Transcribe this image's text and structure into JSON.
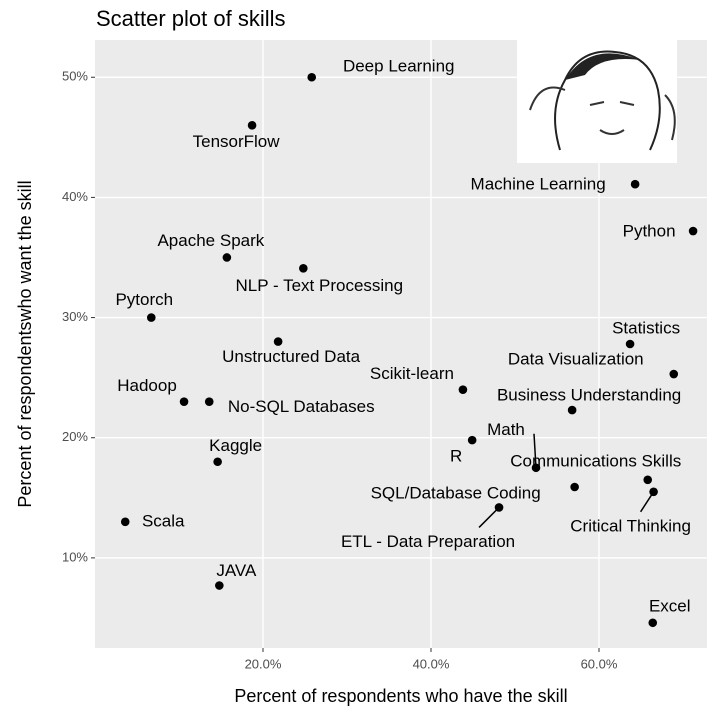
{
  "chart_data": {
    "type": "scatter",
    "title": "Scatter plot of skills",
    "x_label": "Percent of respondents who have the skill",
    "y_label": "Percent of respondentswho want the skill",
    "color": "#000000",
    "grid": true,
    "xlim": [
      0,
      73
    ],
    "ylim": [
      2.5,
      53.1
    ],
    "xticks": [
      {
        "value": 20,
        "label": "20.0%"
      },
      {
        "value": 40,
        "label": "40.0%"
      },
      {
        "value": 60,
        "label": "60.0%"
      }
    ],
    "yticks": [
      {
        "value": 10,
        "label": "10%"
      },
      {
        "value": 20,
        "label": "20%"
      },
      {
        "value": 30,
        "label": "30%"
      },
      {
        "value": 40,
        "label": "40%"
      },
      {
        "value": 50,
        "label": "50%"
      }
    ],
    "labels": [
      "Deep Learning",
      "TensorFlow",
      "Machine Learning",
      "Python",
      "Apache Spark",
      "NLP - Text Processing",
      "Pytorch",
      "Unstructured Data",
      "Statistics",
      "Data Visualization",
      "Scikit-learn",
      "Business Understanding",
      "Hadoop",
      "No-SQL Databases",
      "Math",
      "R",
      "Communications Skills",
      "SQL/Database Coding",
      "Critical Thinking",
      "ETL - Data Preparation",
      "Kaggle",
      "Scala",
      "JAVA",
      "Excel"
    ],
    "x": [
      25.8,
      18.7,
      64.3,
      71.2,
      15.7,
      24.8,
      6.7,
      21.8,
      63.7,
      68.9,
      43.8,
      56.8,
      10.6,
      13.6,
      52.5,
      44.9,
      65.8,
      57.1,
      66.5,
      48.1,
      14.6,
      3.6,
      14.8,
      66.4
    ],
    "values": [
      50.0,
      46.0,
      41.1,
      37.2,
      35.0,
      34.1,
      30.0,
      28.0,
      27.8,
      25.3,
      24.0,
      22.3,
      23.0,
      23.0,
      17.5,
      19.8,
      16.5,
      15.9,
      15.5,
      14.2,
      18.0,
      13.0,
      7.7,
      4.6
    ]
  }
}
